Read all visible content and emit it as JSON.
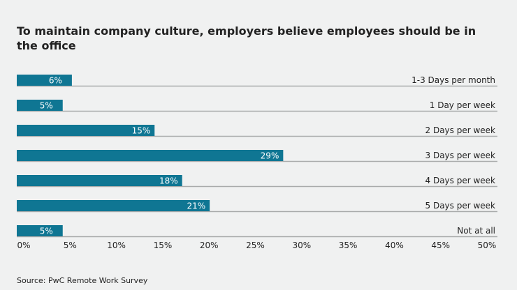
{
  "chart_data": {
    "type": "bar",
    "orientation": "horizontal",
    "title": "To maintain company culture, employers believe employees should be in the office",
    "categories": [
      "1-3 Days per month",
      "1 Day per week",
      "2 Days per week",
      "3 Days per week",
      "4 Days per week",
      "5 Days per week",
      "Not at all"
    ],
    "values": [
      6,
      5,
      15,
      29,
      18,
      21,
      5
    ],
    "data_labels": [
      "6%",
      "5%",
      "15%",
      "29%",
      "18%",
      "21%",
      "5%"
    ],
    "xlim": [
      0,
      50
    ],
    "x_ticks": [
      "0%",
      "5%",
      "10%",
      "15%",
      "20%",
      "25%",
      "30%",
      "35%",
      "40%",
      "45%",
      "50%"
    ],
    "grid": false,
    "bar_color": "#0f7693",
    "source": "Source: PwC Remote Work Survey"
  }
}
